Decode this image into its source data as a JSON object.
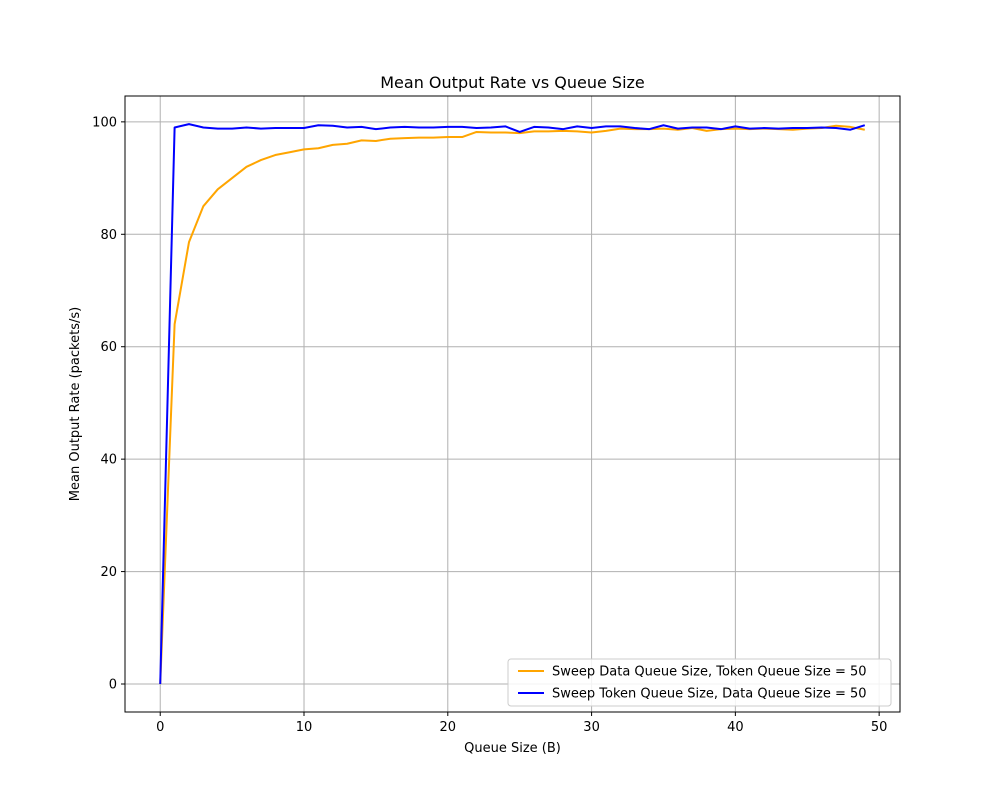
{
  "chart_data": {
    "type": "line",
    "title": "Mean Output Rate vs Queue Size",
    "xlabel": "Queue Size (B)",
    "ylabel": "Mean Output Rate (packets/s)",
    "xlim": [
      -2.45,
      51.45
    ],
    "ylim": [
      -4.98,
      104.6
    ],
    "xticks": [
      0,
      10,
      20,
      30,
      40,
      50
    ],
    "yticks": [
      0,
      20,
      40,
      60,
      80,
      100
    ],
    "grid": true,
    "legend_position": "lower-right",
    "x": [
      0,
      1,
      2,
      3,
      4,
      5,
      6,
      7,
      8,
      9,
      10,
      11,
      12,
      13,
      14,
      15,
      16,
      17,
      18,
      19,
      20,
      21,
      22,
      23,
      24,
      25,
      26,
      27,
      28,
      29,
      30,
      31,
      32,
      33,
      34,
      35,
      36,
      37,
      38,
      39,
      40,
      41,
      42,
      43,
      44,
      45,
      46,
      47,
      48,
      49
    ],
    "series": [
      {
        "name": "Sweep Data Queue Size, Token Queue Size = 50",
        "color": "#ffa500",
        "values": [
          0,
          64,
          78.6,
          85,
          88,
          90,
          92,
          93.2,
          94.1,
          94.6,
          95.1,
          95.3,
          95.9,
          96.1,
          96.7,
          96.6,
          97,
          97.1,
          97.2,
          97.2,
          97.3,
          97.3,
          98.2,
          98.1,
          98.1,
          98,
          98.3,
          98.3,
          98.4,
          98.3,
          98.1,
          98.4,
          98.8,
          98.7,
          98.7,
          98.8,
          98.6,
          98.9,
          98.4,
          98.7,
          98.8,
          98.7,
          98.8,
          98.7,
          98.6,
          98.8,
          98.9,
          99.3,
          99.1,
          98.6
        ]
      },
      {
        "name": "Sweep Token Queue Size, Data Queue Size = 50",
        "color": "#0000ff",
        "values": [
          0,
          99,
          99.6,
          99,
          98.8,
          98.8,
          99,
          98.8,
          98.9,
          98.9,
          98.9,
          99.4,
          99.3,
          99,
          99.1,
          98.7,
          99,
          99.1,
          99,
          99,
          99.1,
          99.1,
          98.9,
          99,
          99.2,
          98.2,
          99.1,
          99,
          98.7,
          99.2,
          98.9,
          99.2,
          99.2,
          98.9,
          98.7,
          99.4,
          98.8,
          99,
          99,
          98.7,
          99.2,
          98.8,
          98.9,
          98.8,
          98.9,
          98.9,
          99,
          98.9,
          98.6,
          99.4
        ]
      }
    ]
  }
}
